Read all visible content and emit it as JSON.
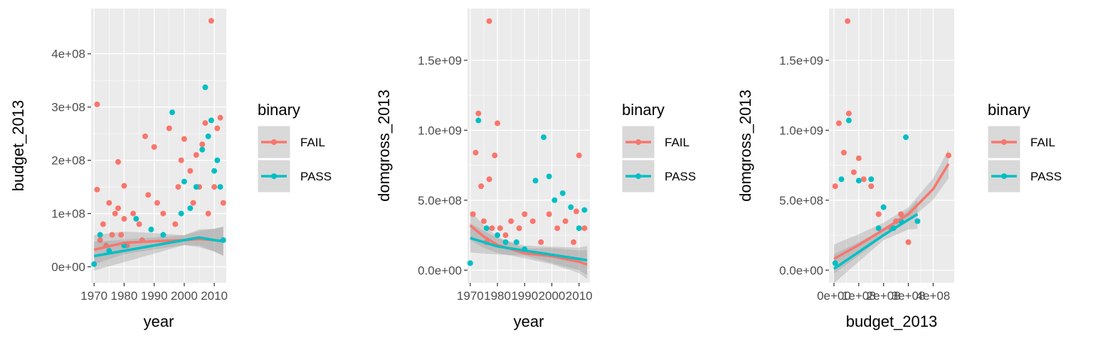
{
  "chart_data": [
    {
      "type": "scatter",
      "xlabel": "year",
      "ylabel": "budget_2013",
      "x_ticks": [
        "1970",
        "1980",
        "1990",
        "2000",
        "2010"
      ],
      "x_tick_values": [
        1970,
        1980,
        1990,
        2000,
        2010
      ],
      "y_ticks": [
        "0e+00",
        "1e+08",
        "2e+08",
        "3e+08",
        "4e+08"
      ],
      "y_tick_values": [
        0,
        100000000,
        200000000,
        300000000,
        400000000
      ],
      "xlim": [
        1969,
        2014
      ],
      "ylim": [
        -30000000,
        485000000
      ],
      "grid": true,
      "series": [
        {
          "name": "FAIL",
          "color": "#F8766D",
          "points": [
            [
              1971,
              305000000
            ],
            [
              1971,
              145000000
            ],
            [
              1972,
              50000000
            ],
            [
              1973,
              80000000
            ],
            [
              1974,
              40000000
            ],
            [
              1975,
              120000000
            ],
            [
              1976,
              60000000
            ],
            [
              1977,
              100000000
            ],
            [
              1978,
              197000000
            ],
            [
              1978,
              110000000
            ],
            [
              1979,
              60000000
            ],
            [
              1980,
              152000000
            ],
            [
              1980,
              90000000
            ],
            [
              1981,
              40000000
            ],
            [
              1983,
              100000000
            ],
            [
              1985,
              80000000
            ],
            [
              1986,
              50000000
            ],
            [
              1987,
              245000000
            ],
            [
              1988,
              135000000
            ],
            [
              1990,
              225000000
            ],
            [
              1991,
              120000000
            ],
            [
              1993,
              100000000
            ],
            [
              1995,
              260000000
            ],
            [
              1997,
              80000000
            ],
            [
              1998,
              150000000
            ],
            [
              1999,
              200000000
            ],
            [
              2000,
              240000000
            ],
            [
              2002,
              180000000
            ],
            [
              2003,
              120000000
            ],
            [
              2004,
              210000000
            ],
            [
              2005,
              150000000
            ],
            [
              2006,
              230000000
            ],
            [
              2007,
              270000000
            ],
            [
              2008,
              100000000
            ],
            [
              2009,
              462000000
            ],
            [
              2010,
              150000000
            ],
            [
              2011,
              260000000
            ],
            [
              2012,
              280000000
            ],
            [
              2013,
              120000000
            ]
          ],
          "trend": [
            [
              1970,
              32000000
            ],
            [
              1980,
              45000000
            ],
            [
              1990,
              48000000
            ],
            [
              2000,
              50000000
            ],
            [
              2005,
              52000000
            ],
            [
              2010,
              50000000
            ],
            [
              2013,
              48000000
            ]
          ]
        },
        {
          "name": "PASS",
          "color": "#00BFC4",
          "points": [
            [
              1970,
              5000000
            ],
            [
              1972,
              60000000
            ],
            [
              1975,
              30000000
            ],
            [
              1980,
              40000000
            ],
            [
              1984,
              90000000
            ],
            [
              1989,
              70000000
            ],
            [
              1993,
              60000000
            ],
            [
              1996,
              290000000
            ],
            [
              1999,
              100000000
            ],
            [
              2000,
              160000000
            ],
            [
              2002,
              110000000
            ],
            [
              2004,
              150000000
            ],
            [
              2006,
              220000000
            ],
            [
              2007,
              337000000
            ],
            [
              2008,
              245000000
            ],
            [
              2009,
              275000000
            ],
            [
              2010,
              180000000
            ],
            [
              2011,
              200000000
            ],
            [
              2012,
              150000000
            ],
            [
              2013,
              50000000
            ]
          ],
          "trend": [
            [
              1970,
              20000000
            ],
            [
              1980,
              30000000
            ],
            [
              1990,
              40000000
            ],
            [
              2000,
              50000000
            ],
            [
              2005,
              55000000
            ],
            [
              2010,
              50000000
            ],
            [
              2013,
              48000000
            ]
          ]
        }
      ],
      "legend": {
        "title": "binary",
        "entries": [
          "FAIL",
          "PASS"
        ],
        "position": "right"
      }
    },
    {
      "type": "scatter",
      "xlabel": "year",
      "ylabel": "domgross_2013",
      "x_ticks": [
        "1970",
        "1980",
        "1990",
        "2000",
        "2010"
      ],
      "x_tick_values": [
        1970,
        1980,
        1990,
        2000,
        2010
      ],
      "y_ticks": [
        "0.0e+00",
        "5.0e+08",
        "1.0e+09",
        "1.5e+09"
      ],
      "y_tick_values": [
        0,
        500000000,
        1000000000,
        1500000000
      ],
      "xlim": [
        1969,
        2014
      ],
      "ylim": [
        -90000000,
        1870000000
      ],
      "grid": true,
      "series": [
        {
          "name": "FAIL",
          "color": "#F8766D",
          "points": [
            [
              1971,
              400000000
            ],
            [
              1972,
              840000000
            ],
            [
              1973,
              1120000000
            ],
            [
              1974,
              600000000
            ],
            [
              1975,
              350000000
            ],
            [
              1976,
              200000000
            ],
            [
              1977,
              1780000000
            ],
            [
              1977,
              650000000
            ],
            [
              1978,
              300000000
            ],
            [
              1979,
              820000000
            ],
            [
              1980,
              1050000000
            ],
            [
              1981,
              300000000
            ],
            [
              1983,
              250000000
            ],
            [
              1985,
              350000000
            ],
            [
              1988,
              300000000
            ],
            [
              1990,
              400000000
            ],
            [
              1993,
              350000000
            ],
            [
              1996,
              200000000
            ],
            [
              1999,
              400000000
            ],
            [
              2002,
              300000000
            ],
            [
              2005,
              350000000
            ],
            [
              2008,
              200000000
            ],
            [
              2009,
              420000000
            ],
            [
              2010,
              820000000
            ],
            [
              2012,
              300000000
            ]
          ],
          "trend": [
            [
              1970,
              320000000
            ],
            [
              1975,
              240000000
            ],
            [
              1980,
              180000000
            ],
            [
              1990,
              120000000
            ],
            [
              2000,
              100000000
            ],
            [
              2010,
              60000000
            ],
            [
              2013,
              40000000
            ]
          ]
        },
        {
          "name": "PASS",
          "color": "#00BFC4",
          "points": [
            [
              1970,
              50000000
            ],
            [
              1973,
              1070000000
            ],
            [
              1976,
              300000000
            ],
            [
              1980,
              250000000
            ],
            [
              1983,
              200000000
            ],
            [
              1987,
              200000000
            ],
            [
              1990,
              150000000
            ],
            [
              1994,
              640000000
            ],
            [
              1997,
              950000000
            ],
            [
              1999,
              670000000
            ],
            [
              2001,
              500000000
            ],
            [
              2004,
              550000000
            ],
            [
              2007,
              450000000
            ],
            [
              2010,
              300000000
            ],
            [
              2012,
              430000000
            ]
          ],
          "trend": [
            [
              1970,
              230000000
            ],
            [
              1975,
              200000000
            ],
            [
              1980,
              170000000
            ],
            [
              1990,
              140000000
            ],
            [
              2000,
              110000000
            ],
            [
              2010,
              80000000
            ],
            [
              2013,
              70000000
            ]
          ]
        }
      ],
      "legend": {
        "title": "binary",
        "entries": [
          "FAIL",
          "PASS"
        ],
        "position": "right"
      }
    },
    {
      "type": "scatter",
      "xlabel": "budget_2013",
      "ylabel": "domgross_2013",
      "x_ticks": [
        "0e+00",
        "1e+08",
        "2e+08",
        "3e+08",
        "4e+08"
      ],
      "x_tick_values": [
        0,
        100000000,
        200000000,
        300000000,
        400000000
      ],
      "y_ticks": [
        "0.0e+00",
        "5.0e+08",
        "1.0e+09",
        "1.5e+09"
      ],
      "y_tick_values": [
        0,
        500000000,
        1000000000,
        1500000000
      ],
      "xlim": [
        -20000000,
        485000000
      ],
      "ylim": [
        -90000000,
        1870000000
      ],
      "grid": true,
      "series": [
        {
          "name": "FAIL",
          "color": "#F8766D",
          "points": [
            [
              5000000,
              600000000
            ],
            [
              20000000,
              1050000000
            ],
            [
              40000000,
              840000000
            ],
            [
              55000000,
              1780000000
            ],
            [
              60000000,
              1120000000
            ],
            [
              80000000,
              700000000
            ],
            [
              100000000,
              800000000
            ],
            [
              120000000,
              650000000
            ],
            [
              150000000,
              600000000
            ],
            [
              180000000,
              400000000
            ],
            [
              200000000,
              450000000
            ],
            [
              230000000,
              300000000
            ],
            [
              250000000,
              350000000
            ],
            [
              270000000,
              400000000
            ],
            [
              300000000,
              200000000
            ],
            [
              462000000,
              820000000
            ]
          ],
          "trend": [
            [
              0,
              80000000
            ],
            [
              100000000,
              180000000
            ],
            [
              200000000,
              290000000
            ],
            [
              300000000,
              400000000
            ],
            [
              400000000,
              580000000
            ],
            [
              462000000,
              760000000
            ]
          ]
        },
        {
          "name": "PASS",
          "color": "#00BFC4",
          "points": [
            [
              5000000,
              50000000
            ],
            [
              30000000,
              650000000
            ],
            [
              60000000,
              1070000000
            ],
            [
              100000000,
              640000000
            ],
            [
              150000000,
              650000000
            ],
            [
              180000000,
              300000000
            ],
            [
              200000000,
              450000000
            ],
            [
              240000000,
              300000000
            ],
            [
              270000000,
              350000000
            ],
            [
              290000000,
              950000000
            ],
            [
              337000000,
              350000000
            ]
          ],
          "trend": [
            [
              0,
              10000000
            ],
            [
              100000000,
              130000000
            ],
            [
              200000000,
              250000000
            ],
            [
              300000000,
              360000000
            ],
            [
              337000000,
              400000000
            ]
          ]
        }
      ],
      "legend": {
        "title": "binary",
        "entries": [
          "FAIL",
          "PASS"
        ],
        "position": "right"
      }
    }
  ]
}
